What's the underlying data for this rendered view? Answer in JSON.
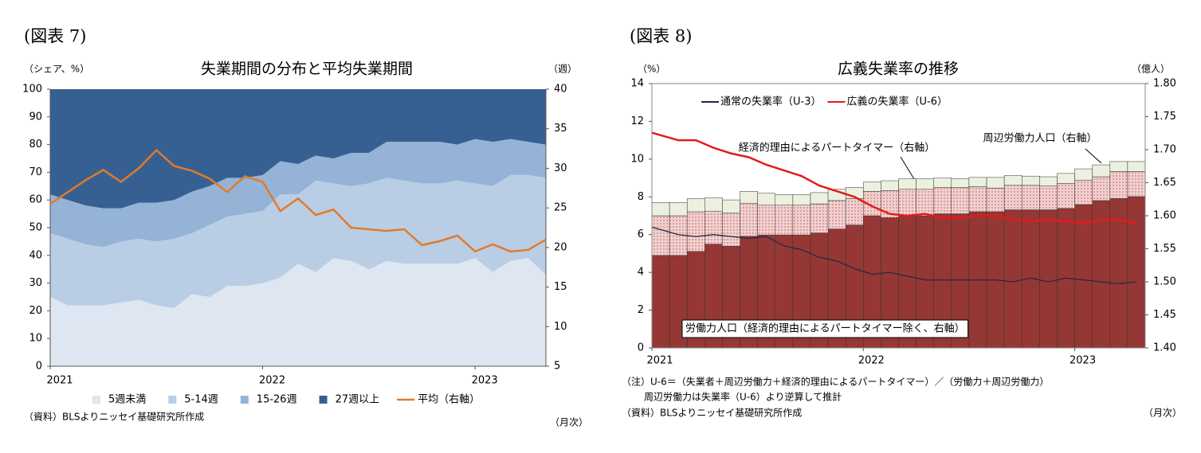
{
  "chart_data": [
    {
      "type": "area",
      "figure_label": "(図表 7)",
      "title": "失業期間の分布と平均失業期間",
      "y_label": "（シェア、%）",
      "y2_label": "（週）",
      "x_label": "（月次）",
      "source": "（資料）BLSよりニッセイ基礎研究所作成",
      "categories": [
        "2021",
        null,
        null,
        null,
        null,
        null,
        null,
        null,
        null,
        null,
        null,
        null,
        "2022",
        null,
        null,
        null,
        null,
        null,
        null,
        null,
        null,
        null,
        null,
        null,
        "2023",
        null,
        null,
        null,
        null
      ],
      "ylim": [
        0,
        100
      ],
      "yticks": [
        0,
        10,
        20,
        30,
        40,
        50,
        60,
        70,
        80,
        90,
        100
      ],
      "y2lim": [
        5,
        40
      ],
      "y2ticks": [
        5,
        10,
        15,
        20,
        25,
        30,
        35,
        40
      ],
      "stacked": true,
      "legend": "bottom",
      "series": [
        {
          "name": "5週未満",
          "color": "#dde6f1",
          "values": [
            25,
            22,
            22,
            22,
            23,
            24,
            22,
            21,
            26,
            25,
            29,
            29,
            30,
            32,
            37,
            34,
            39,
            38,
            35,
            38,
            37,
            37,
            37,
            37,
            39,
            34,
            38,
            39,
            33
          ]
        },
        {
          "name": "5-14週",
          "color": "#b9cde5",
          "values": [
            23,
            24,
            22,
            21,
            22,
            22,
            23,
            25,
            22,
            26,
            25,
            26,
            26,
            30,
            25,
            33,
            27,
            27,
            31,
            30,
            30,
            29,
            29,
            30,
            27,
            31,
            31,
            30,
            35
          ]
        },
        {
          "name": "15-26週",
          "color": "#95b3d7",
          "values": [
            14,
            14,
            14,
            14,
            12,
            13,
            14,
            14,
            15,
            14,
            14,
            13,
            13,
            12,
            11,
            9,
            9,
            12,
            11,
            13,
            14,
            15,
            15,
            13,
            16,
            16,
            13,
            12,
            12
          ]
        },
        {
          "name": "27週以上",
          "color": "#376092",
          "values": [
            38,
            40,
            42,
            43,
            43,
            41,
            41,
            40,
            37,
            35,
            32,
            32,
            31,
            26,
            27,
            24,
            25,
            23,
            23,
            19,
            19,
            19,
            19,
            20,
            18,
            19,
            18,
            19,
            20
          ]
        },
        {
          "name": "平均（右軸）",
          "color": "#e07b2a",
          "type": "line",
          "axis": "y2",
          "values": [
            25.5,
            27,
            28.5,
            29.8,
            28.3,
            30,
            32.3,
            30.3,
            29.7,
            28.7,
            27,
            29,
            28.3,
            24.6,
            26.2,
            24.1,
            24.8,
            22.5,
            22.3,
            22.1,
            22.3,
            20.3,
            20.8,
            21.5,
            19.5,
            20.4,
            19.5,
            19.7,
            21
          ]
        }
      ]
    },
    {
      "type": "bar",
      "figure_label": "(図表 8)",
      "title": "広義失業率の推移",
      "y_label": "（%）",
      "y2_label": "（億人）",
      "x_label": "（月次）",
      "notes": [
        "（注）U-6＝（失業者＋周辺労働力＋経済的理由によるパートタイマー）／（労働力＋周辺労働力）",
        "周辺労働力は失業率（U-6）より逆算して推計"
      ],
      "source": "（資料）BLSよりニッセイ基礎研究所作成",
      "categories": [
        "2021",
        null,
        null,
        null,
        null,
        null,
        null,
        null,
        null,
        null,
        null,
        null,
        "2022",
        null,
        null,
        null,
        null,
        null,
        null,
        null,
        null,
        null,
        null,
        null,
        "2023",
        null,
        null,
        null
      ],
      "ylim": [
        0,
        14
      ],
      "yticks": [
        0,
        2,
        4,
        6,
        8,
        10,
        12,
        14
      ],
      "y2lim": [
        1.4,
        1.8
      ],
      "y2ticks": [
        {
          "value": 1.4,
          "label": "1.40"
        },
        1.45,
        {
          "value": 1.5,
          "label": "1.50"
        },
        1.55,
        {
          "value": 1.6,
          "label": "1.60"
        },
        1.65,
        {
          "value": 1.7,
          "label": "1.70"
        },
        1.75,
        {
          "value": 1.8,
          "label": "1.80"
        }
      ],
      "stacked": true,
      "legend": "top",
      "series": [
        {
          "name": "労働力人口（経済的理由によるパートタイマー除く、右軸）",
          "color": "#953735",
          "axis": "y2",
          "values": [
            1.54,
            1.54,
            1.546,
            1.557,
            1.554,
            1.569,
            1.571,
            1.571,
            1.571,
            1.574,
            1.58,
            1.586,
            1.6,
            1.597,
            1.6,
            1.6,
            1.603,
            1.603,
            1.606,
            1.606,
            1.609,
            1.609,
            1.609,
            1.611,
            1.617,
            1.623,
            1.626,
            1.629
          ]
        },
        {
          "name": "経済的理由によるパートタイマー（右軸）",
          "color": "#f2d0cf",
          "pattern": "dots",
          "axis": "y2",
          "values": [
            0.06,
            0.06,
            0.06,
            0.05,
            0.05,
            0.05,
            0.045,
            0.045,
            0.045,
            0.044,
            0.043,
            0.04,
            0.037,
            0.041,
            0.04,
            0.04,
            0.04,
            0.04,
            0.038,
            0.036,
            0.037,
            0.037,
            0.036,
            0.038,
            0.037,
            0.036,
            0.041,
            0.038
          ]
        },
        {
          "name": "周辺労働力人口（右軸）",
          "color": "#ebf1de",
          "axis": "y2",
          "values": [
            0.02,
            0.02,
            0.02,
            0.02,
            0.02,
            0.018,
            0.018,
            0.016,
            0.016,
            0.017,
            0.017,
            0.017,
            0.014,
            0.015,
            0.016,
            0.016,
            0.014,
            0.013,
            0.014,
            0.016,
            0.015,
            0.014,
            0.014,
            0.015,
            0.017,
            0.018,
            0.015,
            0.015
          ]
        },
        {
          "name": "通常の失業率（U-3）",
          "color": "#1f2a4a",
          "type": "line",
          "values": [
            6.4,
            6.0,
            5.9,
            6.0,
            5.9,
            5.8,
            5.9,
            5.4,
            5.2,
            4.8,
            4.6,
            4.2,
            3.9,
            4.0,
            3.8,
            3.6,
            3.6,
            3.6,
            3.6,
            3.6,
            3.5,
            3.7,
            3.5,
            3.7,
            3.6,
            3.5,
            3.4,
            3.5
          ]
        },
        {
          "name": "広義の失業率（U-6）",
          "color": "#e41a1c",
          "type": "line",
          "values": [
            11.4,
            11.0,
            11.0,
            10.6,
            10.3,
            10.1,
            9.7,
            9.4,
            9.1,
            8.6,
            8.3,
            8.0,
            7.5,
            7.1,
            7.0,
            7.1,
            6.9,
            6.9,
            7.0,
            7.0,
            6.8,
            6.7,
            6.8,
            6.7,
            6.6,
            6.8,
            6.8,
            6.6
          ]
        }
      ]
    }
  ]
}
